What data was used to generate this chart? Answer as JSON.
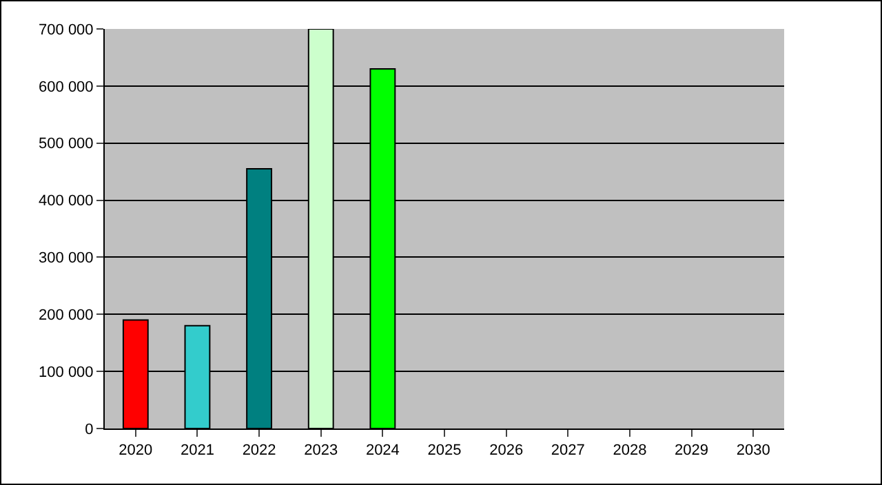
{
  "chart_data": {
    "type": "bar",
    "categories": [
      "2020",
      "2021",
      "2022",
      "2023",
      "2024",
      "2025",
      "2026",
      "2027",
      "2028",
      "2029",
      "2030"
    ],
    "values": [
      190000,
      180000,
      455000,
      700000,
      630000,
      null,
      null,
      null,
      null,
      null,
      null
    ],
    "colors": [
      "#ff0000",
      "#33cccc",
      "#008080",
      "#ccffcc",
      "#00ff00",
      "#999999",
      "#999999",
      "#999999",
      "#999999",
      "#999999",
      "#999999"
    ],
    "ylim": [
      0,
      700000
    ],
    "yticks": [
      {
        "value": 0,
        "label": "0"
      },
      {
        "value": 100000,
        "label": "100 000"
      },
      {
        "value": 200000,
        "label": "200 000"
      },
      {
        "value": 300000,
        "label": "300 000"
      },
      {
        "value": 400000,
        "label": "400 000"
      },
      {
        "value": 500000,
        "label": "500 000"
      },
      {
        "value": 600000,
        "label": "600 000"
      },
      {
        "value": 700000,
        "label": "700 000"
      }
    ],
    "grid": "y"
  }
}
